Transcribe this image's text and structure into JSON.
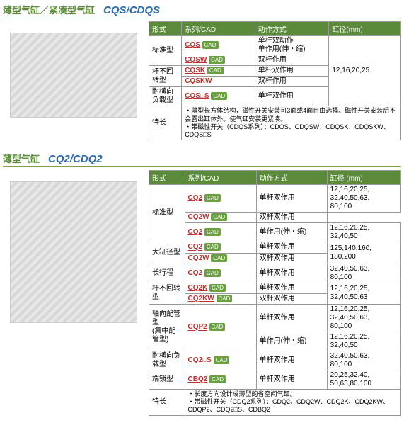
{
  "colors": {
    "header_bg": "#5a8a3a",
    "link": "#c03030",
    "model": "#2a6aa8",
    "title": "#5a8a3a",
    "cad_badge": "#6aa040"
  },
  "sections": [
    {
      "title": "薄型气缸／紧凑型气缸",
      "model": "CQS/CDQS",
      "columns": [
        "形式",
        "系列/CAD",
        "动作方式",
        "缸径(mm)"
      ],
      "img_class": "imgph",
      "rows": [
        {
          "form": "标准型",
          "form_rs": 2,
          "series": "CQS",
          "cad": true,
          "action": "单杆双动作\n单作用(伸・缩)",
          "bore": "12,16,20,25",
          "bore_rs": 5
        },
        {
          "series": "CQSW",
          "cad": true,
          "action": "双杆作用"
        },
        {
          "form": "杆不回转型",
          "form_rs": 2,
          "series": "CQSK",
          "cad": true,
          "action": "单杆双作用"
        },
        {
          "series": "CQSKW",
          "cad": false,
          "action": "双杆作用"
        },
        {
          "form": "耐横向负载型",
          "series": "CQS□S",
          "cad": true,
          "action": "单杆双作用"
        },
        {
          "form": "特长",
          "features": "・薄型长方体结构，磁性开关安装可3面或4面自由选择。磁性开关安装后不会露出缸体外。使气缸安装更紧凑。\n・带磁性开关（CDQS系列）：CDQS、CDQSW、CDQSK、CDQSKW、CDQS□S"
        }
      ]
    },
    {
      "title": "薄型气缸",
      "model": "CQ2/CDQ2",
      "columns": [
        "形式",
        "系列/CAD",
        "动作方式",
        "缸径 (mm)"
      ],
      "img_class": "imgph imgph2",
      "rows": [
        {
          "form": "标准型",
          "form_rs": 3,
          "series": "CQ2",
          "cad": true,
          "action": "单杆双作用",
          "bore": "12,16,20,25,\n32,40,50,63,\n80,100"
        },
        {
          "series": "CQ2W",
          "cad": true,
          "action": "双杆双作用",
          "bore_merge_up": true
        },
        {
          "series": "CQ2",
          "cad": true,
          "action": "单作用(伸・缩)",
          "bore": "12,16,20,25,\n32,40,50"
        },
        {
          "form": "大缸径型",
          "form_rs": 2,
          "series": "CQ2",
          "cad": true,
          "action": "单杆双作用",
          "bore": "125,140,160,\n180,200",
          "bore_rs": 2
        },
        {
          "series": "CQ2W",
          "cad": true,
          "action": "双杆双作用"
        },
        {
          "form": "长行程",
          "series": "CQ2",
          "cad": true,
          "action": "单杆双作用",
          "bore": "32,40,50,63,\n80,100"
        },
        {
          "form": "杆不回转型",
          "form_rs": 2,
          "series": "CQ2K",
          "cad": true,
          "action": "单杆双作用",
          "bore": "12,16,20,25,\n32,40,50,63",
          "bore_rs": 2
        },
        {
          "series": "CQ2KW",
          "cad": true,
          "action": "双杆双作用"
        },
        {
          "form": "轴向配管型\n(集中配管型)",
          "form_rs": 2,
          "series": "CQP2",
          "cad": true,
          "series_rs": 2,
          "action": "单杆双作用",
          "bore": "12,16,20,25,\n32,40,50,63,\n80,100"
        },
        {
          "action": "单作用(伸・缩)",
          "bore": "12,16,20,25,\n32,40,50"
        },
        {
          "form": "耐横向负载型",
          "series": "CQ2□S",
          "cad": true,
          "action": "单杆双作用",
          "bore": "32,40,50,63,\n80,100"
        },
        {
          "form": "端锁型",
          "series": "CBQ2",
          "cad": true,
          "action": "单杆双作用",
          "bore": "20,25,32,40,\n50,63,80,100"
        },
        {
          "form": "特长",
          "features": "・长度方向设计成薄型的省空间气缸。\n・带磁性开关（CDQ2系列）：CDQ2、CDQ2W、CDQ2K、CDQ2KW、CDQP2、CDQ2□S、CDBQ2"
        }
      ]
    }
  ]
}
